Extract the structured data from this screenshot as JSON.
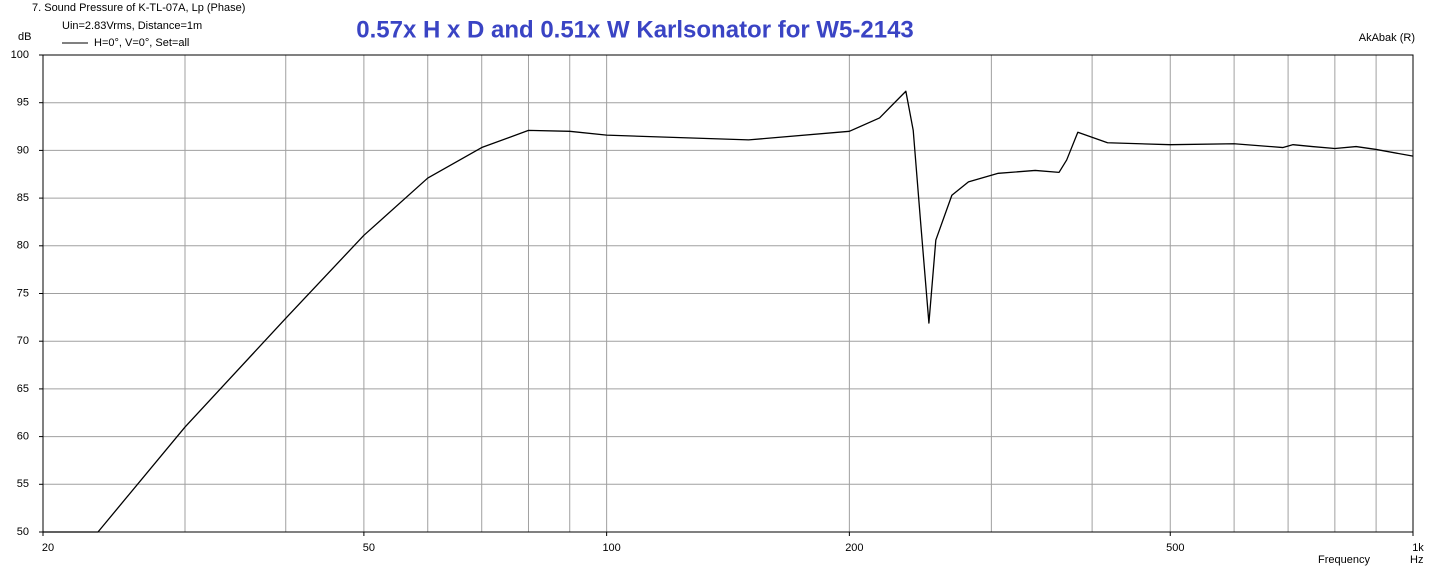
{
  "chart_data": {
    "type": "line",
    "title": "0.57x H x D and 0.51x W Karlsonator for W5-2143",
    "subtitle": "7. Sound Pressure of K-TL-07A, Lp (Phase)",
    "annotation": "Uin=2.83Vrms, Distance=1m",
    "software": "AkAbak (R)",
    "y_label": "dB",
    "x_label": "Frequency",
    "x_unit": "Hz",
    "xscale": "log",
    "grid": true,
    "xlim": [
      20,
      1000
    ],
    "ylim": [
      50,
      100
    ],
    "xticks": [
      20,
      50,
      100,
      200,
      500,
      {
        "value": 1000,
        "label": "1k"
      }
    ],
    "xminor": [
      30,
      40,
      60,
      70,
      80,
      90,
      300,
      400,
      600,
      700,
      800,
      900
    ],
    "yticks": [
      50,
      55,
      60,
      65,
      70,
      75,
      80,
      85,
      90,
      95,
      100
    ],
    "x": [
      20,
      23.4,
      30,
      40,
      50,
      60,
      70,
      80,
      90,
      100,
      150,
      200,
      218,
      235,
      240,
      245,
      251,
      256,
      268,
      281,
      306,
      340,
      364,
      372,
      384,
      418,
      500,
      600,
      690,
      710,
      750,
      800,
      850,
      900,
      1000
    ],
    "series": [
      {
        "name": "H=0°, V=0°, Set=all",
        "color": "#000000",
        "values": [
          50,
          50,
          61,
          72.4,
          81.1,
          87.1,
          90.3,
          92.1,
          92.0,
          91.6,
          91.1,
          92.0,
          93.4,
          96.2,
          92.1,
          82.7,
          71.9,
          80.6,
          85.3,
          86.7,
          87.6,
          87.9,
          87.7,
          89.0,
          91.9,
          90.8,
          90.6,
          90.7,
          90.3,
          90.6,
          90.4,
          90.2,
          90.4,
          90.1,
          89.4
        ]
      }
    ]
  }
}
